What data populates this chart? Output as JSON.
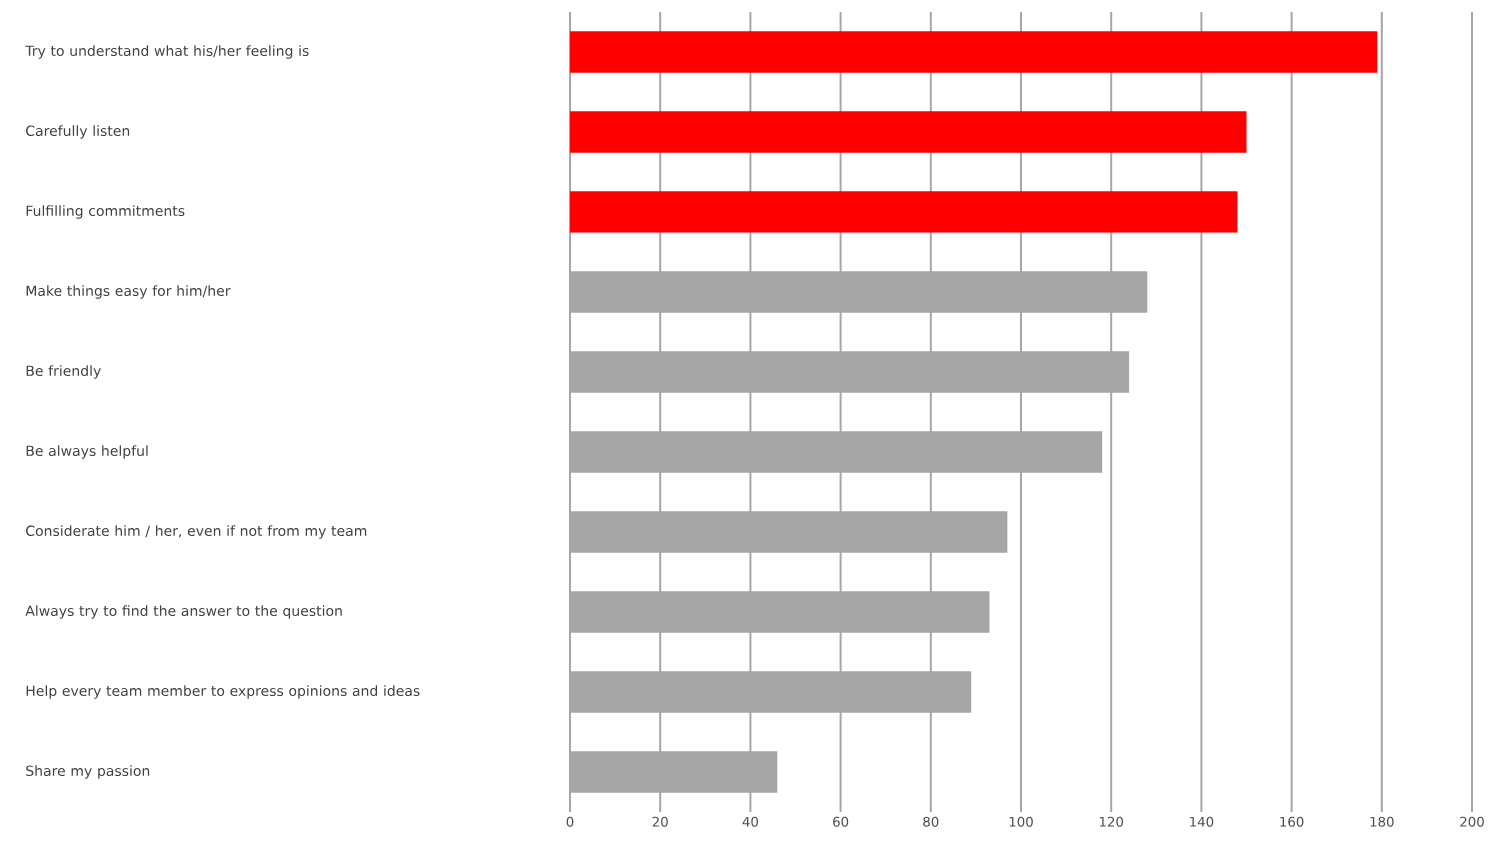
{
  "chart_data": {
    "type": "bar",
    "orientation": "horizontal",
    "categories": [
      "Try to understand what his/her feeling is",
      "Carefully listen",
      "Fulfilling commitments",
      "Make things easy for him/her",
      "Be friendly",
      "Be always helpful",
      "Considerate him / her, even if not from my team",
      "Always try to find the answer to the question",
      "Help every team member to express opinions and ideas",
      "Share my passion"
    ],
    "values": [
      179,
      150,
      148,
      128,
      124,
      118,
      97,
      93,
      89,
      46
    ],
    "colors": [
      "#ff0000",
      "#ff0000",
      "#ff0000",
      "#a6a6a6",
      "#a6a6a6",
      "#a6a6a6",
      "#a6a6a6",
      "#a6a6a6",
      "#a6a6a6",
      "#a6a6a6"
    ],
    "xlim": [
      0,
      200
    ],
    "xticks": [
      0,
      20,
      40,
      60,
      80,
      100,
      120,
      140,
      160,
      180,
      200
    ],
    "grid": "x"
  }
}
